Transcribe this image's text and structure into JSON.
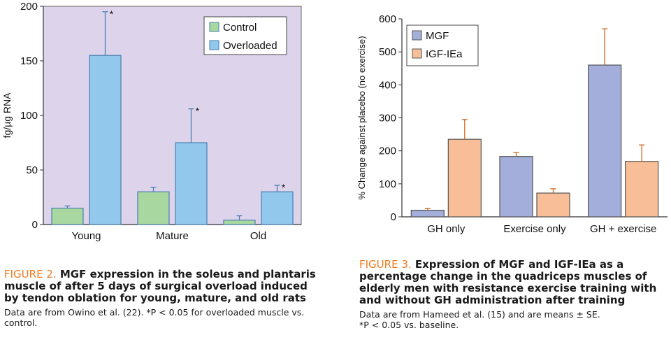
{
  "figure2": {
    "label": "FIGURE 2.",
    "title": "MGF expression in the soleus and plantaris muscle of after 5 days of surgical overload induced by tendon oblation for young, mature, and old rats",
    "note": "Data are from Owino et al. (22). *P < 0.05 for overloaded muscle vs. control."
  },
  "figure3": {
    "label": "FIGURE 3.",
    "title": "Expression of MGF and IGF-IEa as a percentage change in the quadriceps muscles of elderly men with resistance exercise training with and without GH administration after training",
    "note_line1": "Data are from Hameed et al. (15) and are means ± SE.",
    "note_line2": "*P < 0.05 vs. baseline."
  },
  "chart_data": [
    {
      "type": "bar",
      "title": "",
      "xlabel": "",
      "ylabel": "fg/µg RNA",
      "ylim": [
        0,
        200
      ],
      "yticks": [
        0,
        50,
        100,
        150,
        200
      ],
      "categories": [
        "Young",
        "Mature",
        "Old"
      ],
      "series": [
        {
          "name": "Control",
          "values": [
            15,
            30,
            4
          ],
          "errors": [
            2,
            4,
            4
          ],
          "color": "#a8d8a0"
        },
        {
          "name": "Overloaded",
          "values": [
            155,
            75,
            30
          ],
          "errors": [
            40,
            31,
            6
          ],
          "color": "#92c8ec"
        }
      ],
      "annotations": [
        "*",
        "*",
        "*"
      ],
      "legend": "top-right",
      "background": "#ddd4ec"
    },
    {
      "type": "bar",
      "title": "",
      "xlabel": "",
      "ylabel": "% Change against placebo (no exercise)",
      "ylim": [
        0,
        600
      ],
      "yticks": [
        0,
        100,
        200,
        300,
        400,
        500,
        600
      ],
      "categories": [
        "GH only",
        "Exercise only",
        "GH + exercise"
      ],
      "series": [
        {
          "name": "MGF",
          "values": [
            20,
            183,
            460
          ],
          "errors": [
            5,
            12,
            110
          ],
          "color": "#a3aedb"
        },
        {
          "name": "IGF-IEa",
          "values": [
            235,
            72,
            168
          ],
          "errors": [
            60,
            13,
            50
          ],
          "color": "#f8be98"
        }
      ],
      "legend": "top-left",
      "background": "#ffffff"
    }
  ]
}
